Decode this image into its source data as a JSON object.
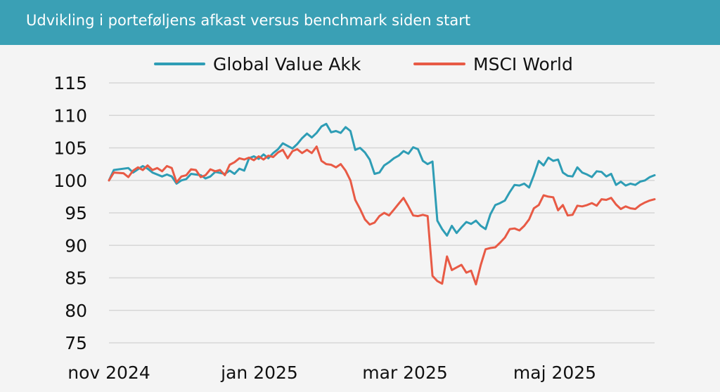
{
  "header": {
    "title": "Udvikling i porteføljens afkast versus benchmark siden start"
  },
  "chart_data": {
    "type": "line",
    "title": "Udvikling i porteføljens afkast versus benchmark siden start",
    "xlabel": "",
    "ylabel": "",
    "ylim": [
      75,
      115
    ],
    "yticks": [
      "115",
      "110",
      "105",
      "100",
      "95",
      "90",
      "85",
      "80",
      "75"
    ],
    "xticks": [
      "nov 2024",
      "jan 2025",
      "mar 2025",
      "maj 2025"
    ],
    "legend_position": "top-center",
    "grid": "horizontal",
    "series": [
      {
        "name": "Global Value Akk",
        "color": "#2e9db5",
        "points": [
          [
            0,
            100
          ],
          [
            1,
            101.6
          ],
          [
            4,
            101.9
          ],
          [
            5,
            101.2
          ],
          [
            7,
            102.2
          ],
          [
            8,
            101.8
          ],
          [
            9,
            101.2
          ],
          [
            11,
            100.6
          ],
          [
            12,
            100.9
          ],
          [
            13,
            100.6
          ],
          [
            14,
            99.5
          ],
          [
            15,
            100
          ],
          [
            16,
            100.2
          ],
          [
            17,
            101
          ],
          [
            19,
            100.8
          ],
          [
            20,
            100.3
          ],
          [
            21,
            100.6
          ],
          [
            22,
            101.3
          ],
          [
            24,
            101
          ],
          [
            25,
            101.5
          ],
          [
            26,
            101
          ],
          [
            27,
            101.8
          ],
          [
            28,
            101.5
          ],
          [
            29,
            103.4
          ],
          [
            30,
            103.7
          ],
          [
            31,
            103.3
          ],
          [
            32,
            104
          ],
          [
            33,
            103.4
          ],
          [
            34,
            104.2
          ],
          [
            35,
            104.8
          ],
          [
            36,
            105.7
          ],
          [
            37,
            105.3
          ],
          [
            38,
            104.9
          ],
          [
            39,
            105.6
          ],
          [
            40,
            106.5
          ],
          [
            41,
            107.2
          ],
          [
            42,
            106.6
          ],
          [
            43,
            107.3
          ],
          [
            44,
            108.3
          ],
          [
            45,
            108.7
          ],
          [
            46,
            107.4
          ],
          [
            47,
            107.6
          ],
          [
            48,
            107.3
          ],
          [
            49,
            108.2
          ],
          [
            50,
            107.6
          ],
          [
            51,
            104.7
          ],
          [
            52,
            105
          ],
          [
            53,
            104.3
          ],
          [
            54,
            103.2
          ],
          [
            55,
            101
          ],
          [
            56,
            101.2
          ],
          [
            57,
            102.3
          ],
          [
            58,
            102.8
          ],
          [
            59,
            103.4
          ],
          [
            60,
            103.8
          ],
          [
            61,
            104.5
          ],
          [
            62,
            104.1
          ],
          [
            63,
            105.1
          ],
          [
            64,
            104.8
          ],
          [
            65,
            103
          ],
          [
            66,
            102.5
          ],
          [
            67,
            102.9
          ],
          [
            68,
            93.8
          ],
          [
            69,
            92.5
          ],
          [
            70,
            91.5
          ],
          [
            71,
            93
          ],
          [
            72,
            91.9
          ],
          [
            73,
            92.8
          ],
          [
            74,
            93.6
          ],
          [
            75,
            93.3
          ],
          [
            76,
            93.8
          ],
          [
            77,
            93
          ],
          [
            78,
            92.5
          ],
          [
            79,
            94.8
          ],
          [
            80,
            96.2
          ],
          [
            81,
            96.5
          ],
          [
            82,
            96.9
          ],
          [
            83,
            98.2
          ],
          [
            84,
            99.3
          ],
          [
            85,
            99.2
          ],
          [
            86,
            99.5
          ],
          [
            87,
            98.9
          ],
          [
            88,
            100.8
          ],
          [
            89,
            103
          ],
          [
            90,
            102.3
          ],
          [
            91,
            103.5
          ],
          [
            92,
            103
          ],
          [
            93,
            103.2
          ],
          [
            94,
            101.2
          ],
          [
            95,
            100.7
          ],
          [
            96,
            100.6
          ],
          [
            97,
            102
          ],
          [
            98,
            101.2
          ],
          [
            99,
            100.9
          ],
          [
            100,
            100.5
          ],
          [
            101,
            101.4
          ],
          [
            102,
            101.3
          ],
          [
            103,
            100.6
          ],
          [
            104,
            101
          ],
          [
            105,
            99.3
          ],
          [
            106,
            99.8
          ],
          [
            107,
            99.2
          ],
          [
            108,
            99.5
          ],
          [
            109,
            99.3
          ],
          [
            110,
            99.8
          ],
          [
            111,
            100
          ],
          [
            112,
            100.5
          ],
          [
            113,
            100.8
          ]
        ]
      },
      {
        "name": "MSCI World",
        "color": "#e85a45",
        "points": [
          [
            0,
            100
          ],
          [
            1,
            101.2
          ],
          [
            3,
            101.1
          ],
          [
            4,
            100.5
          ],
          [
            5,
            101.5
          ],
          [
            6,
            102
          ],
          [
            7,
            101.6
          ],
          [
            8,
            102.3
          ],
          [
            9,
            101.6
          ],
          [
            10,
            101.9
          ],
          [
            11,
            101.4
          ],
          [
            12,
            102.2
          ],
          [
            13,
            101.9
          ],
          [
            14,
            99.7
          ],
          [
            15,
            100.6
          ],
          [
            16,
            100.8
          ],
          [
            17,
            101.7
          ],
          [
            18,
            101.6
          ],
          [
            19,
            100.5
          ],
          [
            20,
            100.8
          ],
          [
            21,
            101.7
          ],
          [
            22,
            101.4
          ],
          [
            23,
            101.6
          ],
          [
            24,
            100.8
          ],
          [
            25,
            102.4
          ],
          [
            26,
            102.8
          ],
          [
            27,
            103.4
          ],
          [
            28,
            103.2
          ],
          [
            29,
            103.5
          ],
          [
            30,
            103.1
          ],
          [
            31,
            103.7
          ],
          [
            32,
            103.2
          ],
          [
            33,
            103.8
          ],
          [
            34,
            103.6
          ],
          [
            35,
            104.3
          ],
          [
            36,
            104.7
          ],
          [
            37,
            103.4
          ],
          [
            38,
            104.5
          ],
          [
            39,
            104.8
          ],
          [
            40,
            104.2
          ],
          [
            41,
            104.7
          ],
          [
            42,
            104.2
          ],
          [
            43,
            105.2
          ],
          [
            44,
            103
          ],
          [
            45,
            102.5
          ],
          [
            46,
            102.4
          ],
          [
            47,
            102
          ],
          [
            48,
            102.5
          ],
          [
            49,
            101.5
          ],
          [
            50,
            100
          ],
          [
            51,
            97
          ],
          [
            52,
            95.6
          ],
          [
            53,
            94
          ],
          [
            54,
            93.2
          ],
          [
            55,
            93.5
          ],
          [
            56,
            94.5
          ],
          [
            57,
            95
          ],
          [
            58,
            94.6
          ],
          [
            59,
            95.5
          ],
          [
            60,
            96.4
          ],
          [
            61,
            97.3
          ],
          [
            62,
            96
          ],
          [
            63,
            94.6
          ],
          [
            64,
            94.5
          ],
          [
            65,
            94.7
          ],
          [
            66,
            94.5
          ],
          [
            67,
            85.3
          ],
          [
            68,
            84.5
          ],
          [
            69,
            84.1
          ],
          [
            70,
            88.3
          ],
          [
            71,
            86.2
          ],
          [
            72,
            86.6
          ],
          [
            73,
            87
          ],
          [
            74,
            85.8
          ],
          [
            75,
            86.1
          ],
          [
            76,
            84
          ],
          [
            77,
            87
          ],
          [
            78,
            89.4
          ],
          [
            79,
            89.6
          ],
          [
            80,
            89.7
          ],
          [
            81,
            90.4
          ],
          [
            82,
            91.2
          ],
          [
            83,
            92.5
          ],
          [
            84,
            92.6
          ],
          [
            85,
            92.3
          ],
          [
            86,
            93
          ],
          [
            87,
            94
          ],
          [
            88,
            95.7
          ],
          [
            89,
            96.2
          ],
          [
            90,
            97.7
          ],
          [
            91,
            97.5
          ],
          [
            92,
            97.4
          ],
          [
            93,
            95.4
          ],
          [
            94,
            96.2
          ],
          [
            95,
            94.6
          ],
          [
            96,
            94.7
          ],
          [
            97,
            96.1
          ],
          [
            98,
            96
          ],
          [
            99,
            96.2
          ],
          [
            100,
            96.5
          ],
          [
            101,
            96.1
          ],
          [
            102,
            97.1
          ],
          [
            103,
            97
          ],
          [
            104,
            97.3
          ],
          [
            105,
            96.3
          ],
          [
            106,
            95.6
          ],
          [
            107,
            96
          ],
          [
            108,
            95.7
          ],
          [
            109,
            95.6
          ],
          [
            110,
            96.2
          ],
          [
            111,
            96.6
          ],
          [
            112,
            96.9
          ],
          [
            113,
            97.1
          ]
        ]
      }
    ]
  }
}
